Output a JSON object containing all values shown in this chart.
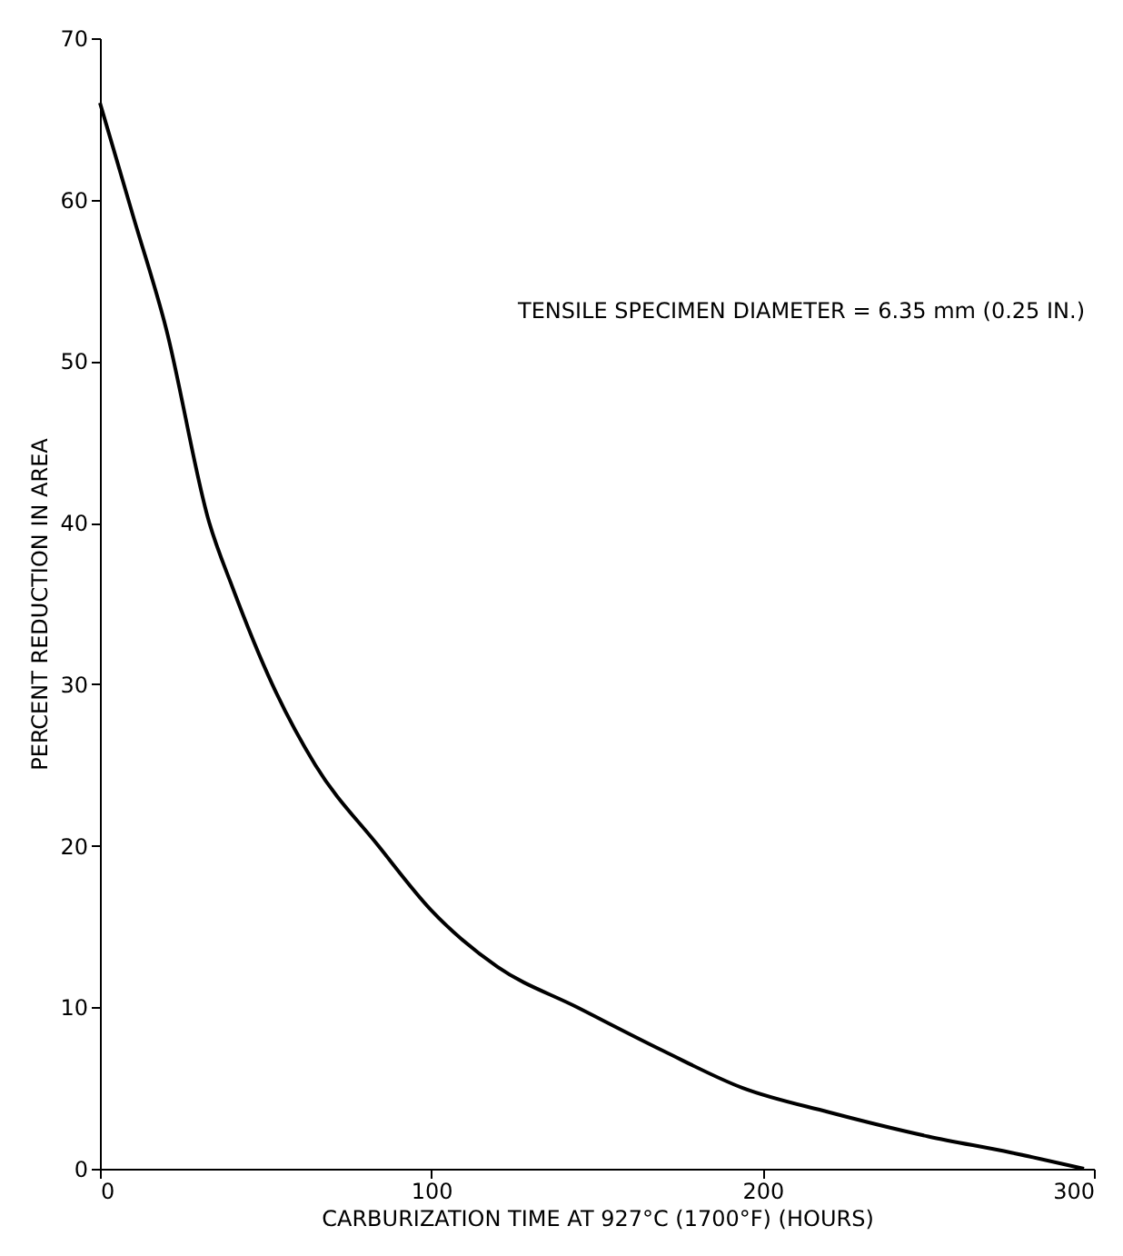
{
  "chart_data": {
    "type": "line",
    "xlabel": "CARBURIZATION TIME AT 927°C (1700°F) (HOURS)",
    "ylabel": "PERCENT REDUCTION IN AREA",
    "annotations": [
      "TENSILE SPECIMEN DIAMETER = 6.35 mm (0.25 IN.)"
    ],
    "x": [
      0,
      10,
      20,
      33,
      40,
      52,
      65,
      84,
      100,
      120,
      144,
      170,
      194,
      220,
      250,
      275,
      297
    ],
    "series": [
      {
        "color": "#000000",
        "values": [
          66,
          59,
          52,
          40,
          36,
          30,
          25,
          20,
          16,
          12.5,
          10,
          7.3,
          5,
          3.5,
          2,
          1,
          0
        ]
      }
    ],
    "xlim": [
      0,
      300
    ],
    "xticks": [
      0,
      100,
      200,
      300
    ],
    "ylim": [
      0,
      70
    ],
    "yticks": [
      0,
      10,
      20,
      30,
      40,
      50,
      60,
      70
    ],
    "grid": false,
    "marker": "none",
    "line_style": "solid"
  }
}
